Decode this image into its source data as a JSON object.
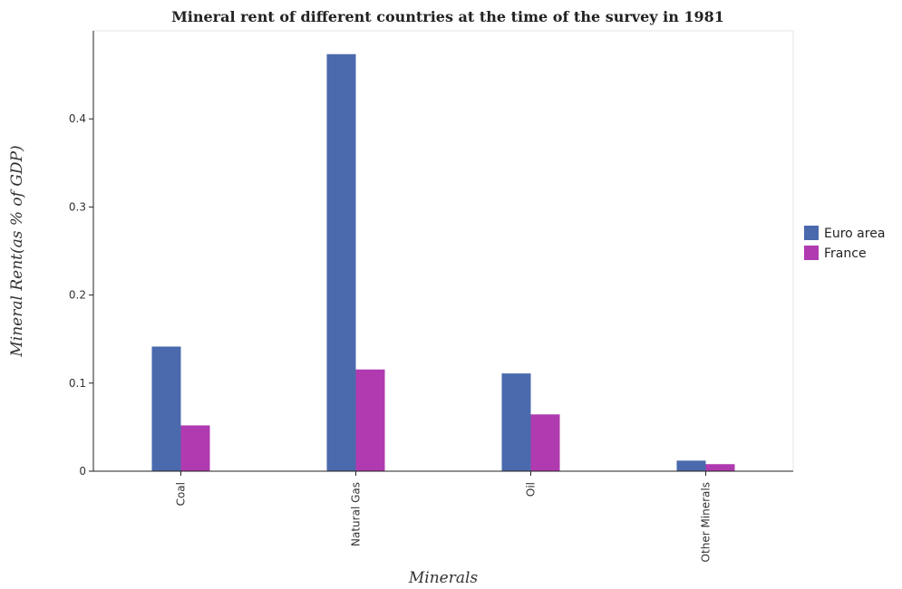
{
  "chart_data": {
    "type": "bar",
    "title": "Mineral rent of different countries at the time of the survey in 1981",
    "xlabel": "Minerals",
    "ylabel": "Mineral Rent(as % of GDP)",
    "categories": [
      "Coal",
      "Natural Gas",
      "Oil",
      "Other Minerals"
    ],
    "series": [
      {
        "name": "Euro area",
        "color": "#4a6aad",
        "values": [
          0.1415,
          0.4735,
          0.111,
          0.012
        ]
      },
      {
        "name": "France",
        "color": "#b03ab0",
        "values": [
          0.052,
          0.1155,
          0.0645,
          0.008
        ]
      }
    ],
    "ylim": [
      0,
      0.5
    ],
    "yticks": [
      0,
      0.1,
      0.2,
      0.3,
      0.4
    ],
    "ytick_labels": [
      "0",
      "0.1",
      "0.2",
      "0.3",
      "0.4"
    ],
    "grid": false,
    "legend_position": "right"
  }
}
